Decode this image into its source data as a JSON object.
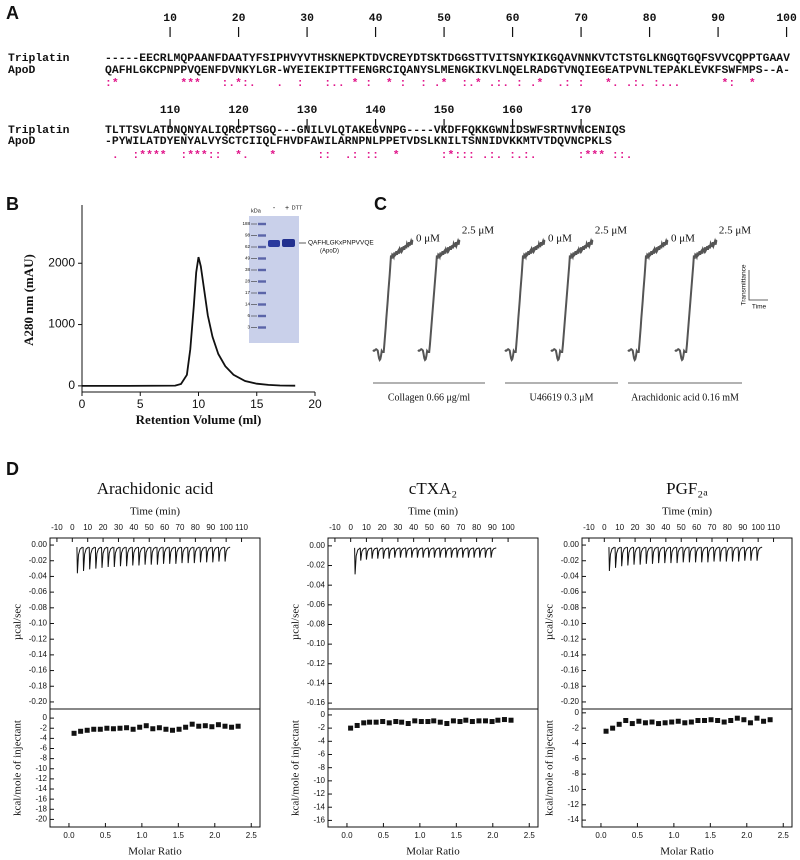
{
  "panel_labels": [
    "A",
    "B",
    "C",
    "D"
  ],
  "alignment": {
    "blocks": [
      {
        "ruler": [
          10,
          20,
          30,
          40,
          50,
          60,
          70,
          80,
          90,
          100
        ],
        "rows": [
          {
            "name": "Triplatin",
            "sequence": "-----EECRLMQPAANFDAATYFSIPHVYVTHSKNEPKTDVCREYDTSKTDGGSTTVITSNYKIKGQAVNNKVTCTSTGLKNGQTGQFSVVCQPPTGAAV"
          },
          {
            "name": "ApoD",
            "sequence": "QAFHLGKCPNPPVQENFDVNKYLGR-WYEIEKIPTTFENGRCIQANYSLMENGKIKVLNQELRADGTVNQIEGEATPVNLTEPAKLEVKFSWFMPS--A-"
          }
        ],
        "consensus": ":*         ***   :.*:.   .  :   :.. * :  * :  : .*  :.* .:. : .*  .: :   *. .:. :...      *:  *"
      },
      {
        "ruler": [
          110,
          120,
          130,
          140,
          150,
          160,
          170
        ],
        "rows": [
          {
            "name": "Triplatin",
            "sequence": "TLTTSVLATDNQNYALIQRCPTSGQ---GNILVLQTAKEGVNPG----VKDFFQKKGWNIDSWFSRTNVNCENIQS"
          },
          {
            "name": "ApoD",
            "sequence": "-PYWILATDYENYALVYSCTCIIQLFHVDFAWILARNPNLPPETVDSLKNILTSNNIDVKKMTVTDQVNCPKLS"
          }
        ],
        "consensus": " .  :****  :***::  *.   *      ::  .: ::  *      :*::: .:. :.:.      :*** ::."
      }
    ]
  },
  "gel": {
    "unit": "kDa",
    "markers": [
      "188",
      "98",
      "62",
      "49",
      "38",
      "28",
      "17",
      "14",
      "6",
      "3"
    ],
    "lanes": [
      "-",
      "+"
    ],
    "reagent": "DTT",
    "band_label": "QAFHLGKxPNPVVQE",
    "band_protein": "(ApoD)"
  },
  "aggregation": {
    "groups": [
      {
        "agonist": "Collagen 0.66 μg/ml",
        "conditions": [
          "0 μM",
          "2.5 μM"
        ]
      },
      {
        "agonist": "U46619 0.3 μM",
        "conditions": [
          "0 μM",
          "2.5 μM"
        ]
      },
      {
        "agonist": "Arachidonic acid 0.16 mM",
        "conditions": [
          "0 μM",
          "2.5 μM"
        ]
      }
    ],
    "scale_bar": {
      "y": "Transmittance",
      "x": "Time"
    }
  },
  "chart_data": [
    {
      "type": "line",
      "x_label": "Retention Volume (ml)",
      "y_label": "A280 nm (mAU)",
      "color": "#111111",
      "xlim": [
        0,
        20
      ],
      "xticks": [
        0,
        5,
        10,
        15,
        20
      ],
      "ylim": [
        -100,
        2950
      ],
      "yticks": [
        0,
        1000,
        2000
      ],
      "x": [
        0,
        4,
        8,
        8.5,
        9,
        9.3,
        9.6,
        9.8,
        10,
        10.2,
        10.5,
        10.8,
        11.2,
        11.7,
        12.3,
        13,
        14,
        15,
        16,
        17,
        18.3
      ],
      "values": [
        0,
        0,
        5,
        30,
        180,
        600,
        1300,
        1850,
        2100,
        1950,
        1550,
        1150,
        800,
        520,
        320,
        180,
        80,
        35,
        15,
        6,
        2
      ]
    },
    {
      "type": "itc",
      "title": "Arachidonic acid",
      "x_label": "Time (min)",
      "y_label": "µcal/sec",
      "color": "#111111",
      "xlim": [
        -14.5,
        122
      ],
      "xticks": [
        -10,
        0,
        10,
        20,
        30,
        40,
        50,
        60,
        70,
        80,
        90,
        100,
        110
      ],
      "ylim": [
        -0.209,
        0.009
      ],
      "yticks": [
        {
          "value": 0,
          "label": "0.00"
        },
        {
          "value": -0.02,
          "label": "-0.02"
        },
        {
          "value": -0.04,
          "label": "-0.04"
        },
        {
          "value": -0.06,
          "label": "-0.06"
        },
        {
          "value": -0.08,
          "label": "-0.08"
        },
        {
          "value": -0.1,
          "label": "-0.10"
        },
        {
          "value": -0.12,
          "label": "-0.12"
        },
        {
          "value": -0.14,
          "label": "-0.14"
        },
        {
          "value": -0.16,
          "label": "-0.16"
        },
        {
          "value": -0.18,
          "label": "-0.18"
        },
        {
          "value": -0.2,
          "label": "-0.20"
        }
      ],
      "injections": {
        "x": [
          3,
          7,
          11,
          15,
          19,
          23,
          27,
          31,
          35,
          39,
          43,
          47,
          51,
          55,
          59,
          63,
          67,
          71,
          75,
          79,
          83,
          87,
          91,
          95,
          99
        ],
        "values": [
          -0.036,
          -0.033,
          -0.031,
          -0.03,
          -0.029,
          -0.028,
          -0.028,
          -0.027,
          -0.027,
          -0.026,
          -0.026,
          -0.025,
          -0.025,
          -0.025,
          -0.024,
          -0.024,
          -0.024,
          -0.023,
          -0.023,
          -0.023,
          -0.022,
          -0.022,
          -0.022,
          -0.021,
          -0.021
        ]
      },
      "bottom": {
        "x_label": "Molar Ratio",
        "y_label": "kcal/mole of injectant",
        "xlim": [
          -0.26,
          2.62
        ],
        "xticks": [
          {
            "value": 0,
            "label": "0.0"
          },
          0.5,
          {
            "value": 1,
            "label": "1.0"
          },
          1.5,
          {
            "value": 2,
            "label": "2.0"
          },
          2.5
        ],
        "ylim": [
          -21.5,
          1.8
        ],
        "yticks": [
          0,
          -2,
          -4,
          -6,
          -8,
          -10,
          -12,
          -14,
          -16,
          -18,
          -20
        ],
        "x": [
          0.07,
          0.16,
          0.25,
          0.34,
          0.43,
          0.52,
          0.61,
          0.7,
          0.79,
          0.88,
          0.97,
          1.06,
          1.15,
          1.24,
          1.33,
          1.42,
          1.51,
          1.6,
          1.69,
          1.78,
          1.87,
          1.96,
          2.05,
          2.14,
          2.23,
          2.32
        ],
        "values": [
          -3,
          -2.6,
          -2.4,
          -2.2,
          -2.2,
          -2,
          -2.1,
          -2,
          -1.9,
          -2.2,
          -1.8,
          -1.5,
          -2.1,
          -1.9,
          -2.2,
          -2.4,
          -2.2,
          -1.8,
          -1.2,
          -1.6,
          -1.5,
          -1.7,
          -1.3,
          -1.6,
          -1.8,
          -1.6
        ]
      }
    },
    {
      "type": "itc",
      "title": "cTXA₂",
      "x_label": "Time (min)",
      "y_label": "µcal/sec",
      "color": "#111111",
      "xlim": [
        -14.4,
        119
      ],
      "xticks": [
        -10,
        0,
        10,
        20,
        30,
        40,
        50,
        60,
        70,
        80,
        90,
        100
      ],
      "ylim": [
        -0.166,
        0.008
      ],
      "yticks": [
        {
          "value": 0,
          "label": "0.00"
        },
        {
          "value": -0.02,
          "label": "-0.02"
        },
        {
          "value": -0.04,
          "label": "-0.04"
        },
        {
          "value": -0.06,
          "label": "-0.06"
        },
        {
          "value": -0.08,
          "label": "-0.08"
        },
        {
          "value": -0.1,
          "label": "-0.10"
        },
        {
          "value": -0.12,
          "label": "-0.12"
        },
        {
          "value": -0.14,
          "label": "-0.14"
        },
        {
          "value": -0.16,
          "label": "-0.16"
        }
      ],
      "injections": {
        "x": [
          2.5,
          6.1,
          9.7,
          13.3,
          16.9,
          20.5,
          24.1,
          27.7,
          31.3,
          34.9,
          38.5,
          42.1,
          45.7,
          49.3,
          52.9,
          56.5,
          60.1,
          63.7,
          67.3,
          70.9,
          74.5,
          78.1,
          81.7,
          85.3,
          88.9
        ],
        "values": [
          -0.029,
          -0.015,
          -0.014,
          -0.013,
          -0.013,
          -0.013,
          -0.013,
          -0.012,
          -0.012,
          -0.012,
          -0.012,
          -0.012,
          -0.012,
          -0.012,
          -0.012,
          -0.012,
          -0.012,
          -0.012,
          -0.012,
          -0.012,
          -0.012,
          -0.012,
          -0.012,
          -0.012,
          -0.012
        ]
      },
      "bottom": {
        "x_label": "Molar Ratio",
        "y_label": "kcal/mole of injectant",
        "xlim": [
          -0.26,
          2.62
        ],
        "xticks": [
          {
            "value": 0,
            "label": "0.0"
          },
          0.5,
          {
            "value": 1,
            "label": "1.0"
          },
          1.5,
          {
            "value": 2,
            "label": "2.0"
          },
          2.5
        ],
        "ylim": [
          -17,
          0.9
        ],
        "yticks": [
          0,
          -2,
          -4,
          -6,
          -8,
          -10,
          -12,
          -14,
          -16
        ],
        "x": [
          0.05,
          0.14,
          0.23,
          0.31,
          0.4,
          0.49,
          0.58,
          0.67,
          0.75,
          0.84,
          0.93,
          1.02,
          1.11,
          1.19,
          1.28,
          1.37,
          1.46,
          1.55,
          1.63,
          1.72,
          1.81,
          1.9,
          1.99,
          2.07,
          2.16,
          2.25
        ],
        "values": [
          -2,
          -1.6,
          -1.2,
          -1.1,
          -1.1,
          -1,
          -1.2,
          -1,
          -1.1,
          -1.3,
          -0.9,
          -1,
          -1,
          -0.9,
          -1.1,
          -1.3,
          -0.9,
          -1,
          -0.8,
          -1,
          -0.9,
          -0.9,
          -1,
          -0.8,
          -0.7,
          -0.8
        ]
      }
    },
    {
      "type": "itc",
      "title": "PGF₂ₐ",
      "x_label": "Time (min)",
      "y_label": "µcal/sec",
      "color": "#111111",
      "xlim": [
        -14.5,
        122
      ],
      "xticks": [
        -10,
        0,
        10,
        20,
        30,
        40,
        50,
        60,
        70,
        80,
        90,
        100,
        110
      ],
      "ylim": [
        -0.209,
        0.009
      ],
      "yticks": [
        {
          "value": 0,
          "label": "0.00"
        },
        {
          "value": -0.02,
          "label": "-0.02"
        },
        {
          "value": -0.04,
          "label": "-0.04"
        },
        {
          "value": -0.06,
          "label": "-0.06"
        },
        {
          "value": -0.08,
          "label": "-0.08"
        },
        {
          "value": -0.1,
          "label": "-0.10"
        },
        {
          "value": -0.12,
          "label": "-0.12"
        },
        {
          "value": -0.14,
          "label": "-0.14"
        },
        {
          "value": -0.16,
          "label": "-0.16"
        },
        {
          "value": -0.18,
          "label": "-0.18"
        },
        {
          "value": -0.2,
          "label": "-0.20"
        }
      ],
      "injections": {
        "x": [
          3,
          7,
          11,
          15,
          19,
          23,
          27,
          31,
          35,
          39,
          43,
          47,
          51,
          55,
          59,
          63,
          67,
          71,
          75,
          79,
          83,
          87,
          91,
          95,
          99
        ],
        "values": [
          -0.033,
          -0.029,
          -0.027,
          -0.026,
          -0.025,
          -0.025,
          -0.024,
          -0.024,
          -0.023,
          -0.023,
          -0.023,
          -0.023,
          -0.022,
          -0.022,
          -0.022,
          -0.022,
          -0.022,
          -0.021,
          -0.021,
          -0.021,
          -0.021,
          -0.021,
          -0.02,
          -0.02,
          -0.02
        ]
      },
      "bottom": {
        "x_label": "Molar Ratio",
        "y_label": "kcal/mole of injectant",
        "xlim": [
          -0.26,
          2.62
        ],
        "xticks": [
          {
            "value": 0,
            "label": "0.0"
          },
          0.5,
          {
            "value": 1,
            "label": "1.0"
          },
          1.5,
          {
            "value": 2,
            "label": "2.0"
          },
          2.5
        ],
        "ylim": [
          -14.9,
          0.5
        ],
        "yticks": [
          0,
          -2,
          -4,
          -6,
          -8,
          -10,
          -12,
          -14
        ],
        "x": [
          0.07,
          0.16,
          0.25,
          0.34,
          0.43,
          0.52,
          0.61,
          0.7,
          0.79,
          0.88,
          0.97,
          1.06,
          1.15,
          1.24,
          1.33,
          1.42,
          1.51,
          1.6,
          1.69,
          1.78,
          1.87,
          1.96,
          2.05,
          2.14,
          2.23,
          2.32
        ],
        "values": [
          -2.4,
          -2,
          -1.5,
          -1,
          -1.4,
          -1.1,
          -1.3,
          -1.2,
          -1.4,
          -1.3,
          -1.2,
          -1.1,
          -1.3,
          -1.2,
          -1,
          -1,
          -0.9,
          -1,
          -1.2,
          -1,
          -0.7,
          -0.9,
          -1.3,
          -0.7,
          -1.1,
          -0.9
        ]
      }
    }
  ]
}
